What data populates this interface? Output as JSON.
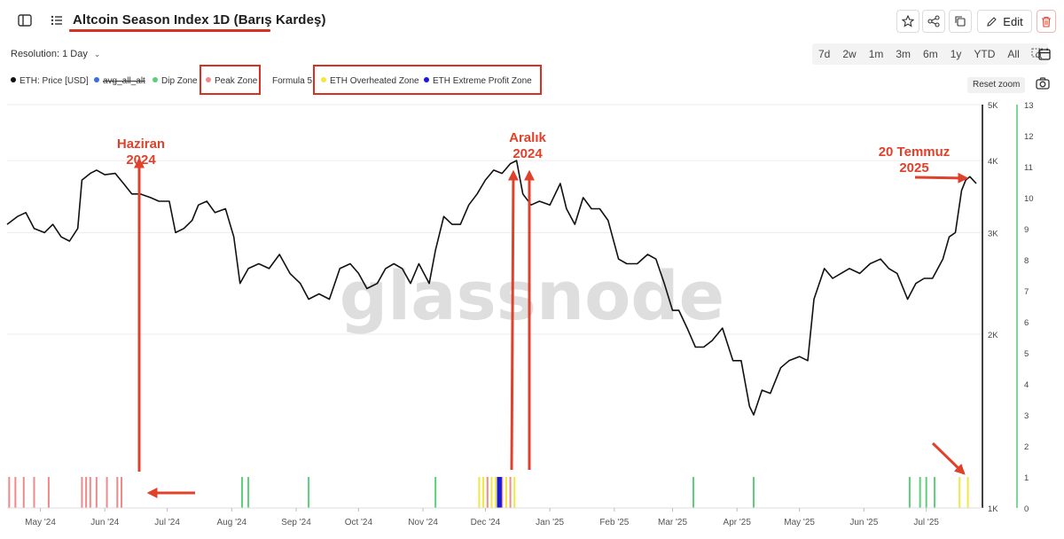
{
  "toolbar": {
    "title": "Altcoin Season Index 1D (Barış Kardeş)",
    "edit_label": "Edit",
    "resolution_label": "Resolution: 1 Day",
    "ranges": [
      "7d",
      "2w",
      "1m",
      "3m",
      "6m",
      "1y",
      "YTD",
      "All"
    ],
    "reset_zoom_label": "Reset zoom"
  },
  "legend": {
    "eth_price": "ETH: Price [USD]",
    "avg_all_alt": "avg_all_alt",
    "dip_zone": "Dip Zone",
    "peak_zone": "Peak Zone",
    "formula": "Formula 5",
    "overheated": "ETH Overheated Zone",
    "extreme_profit": "ETH Extreme Profit Zone"
  },
  "colors": {
    "price_line": "#111111",
    "avg_all_alt": "#3d6be0",
    "dip_zone": "#5ccf7a",
    "peak_zone": "#f08a8a",
    "overheated": "#f2e640",
    "extreme_profit": "#1a1adb",
    "annotation": "#e0412b",
    "watermark": "#d9d9d9"
  },
  "watermark": "glassnode",
  "annotations": [
    {
      "name": "haziran",
      "lines": [
        "Haziran",
        "2024"
      ]
    },
    {
      "name": "aralik",
      "lines": [
        "Aralık",
        "2024"
      ]
    },
    {
      "name": "temmuz",
      "lines": [
        "20 Temmuz",
        "2025"
      ]
    }
  ],
  "chart_data": {
    "type": "line",
    "title": "Altcoin Season Index 1D (Barış Kardeş)",
    "x_start": "2024-04-15",
    "x_end": "2025-07-28",
    "x_ticks": [
      "May '24",
      "Jun '24",
      "Jul '24",
      "Aug '24",
      "Sep '24",
      "Oct '24",
      "Nov '24",
      "Dec '24",
      "Jan '25",
      "Feb '25",
      "Mar '25",
      "Apr '25",
      "May '25",
      "Jun '25",
      "Jul '25"
    ],
    "x_tick_dates": [
      "2024-05-01",
      "2024-06-01",
      "2024-07-01",
      "2024-08-01",
      "2024-09-01",
      "2024-10-01",
      "2024-11-01",
      "2024-12-01",
      "2025-01-01",
      "2025-02-01",
      "2025-03-01",
      "2025-04-01",
      "2025-05-01",
      "2025-06-01",
      "2025-07-01"
    ],
    "y_left_ticks": [
      "1K",
      "2K",
      "3K",
      "4K",
      "5K"
    ],
    "y_left_values": [
      1000,
      2000,
      3000,
      4000,
      5000
    ],
    "y_left_scale": "log",
    "y_right_ticks": [
      "0",
      "1",
      "2",
      "3",
      "4",
      "5",
      "6",
      "7",
      "8",
      "9",
      "10",
      "11",
      "12",
      "13"
    ],
    "y_right_range": [
      0,
      13
    ],
    "grid": true,
    "legend_position": "top-left",
    "series": [
      {
        "name": "ETH: Price [USD]",
        "points": [
          [
            "2024-04-15",
            3100
          ],
          [
            "2024-04-20",
            3200
          ],
          [
            "2024-04-24",
            3250
          ],
          [
            "2024-04-28",
            3050
          ],
          [
            "2024-05-03",
            3000
          ],
          [
            "2024-05-07",
            3100
          ],
          [
            "2024-05-11",
            2950
          ],
          [
            "2024-05-15",
            2900
          ],
          [
            "2024-05-19",
            3050
          ],
          [
            "2024-05-21",
            3700
          ],
          [
            "2024-05-25",
            3800
          ],
          [
            "2024-05-28",
            3850
          ],
          [
            "2024-06-01",
            3780
          ],
          [
            "2024-06-06",
            3800
          ],
          [
            "2024-06-10",
            3650
          ],
          [
            "2024-06-14",
            3500
          ],
          [
            "2024-06-18",
            3500
          ],
          [
            "2024-06-23",
            3450
          ],
          [
            "2024-06-27",
            3400
          ],
          [
            "2024-07-02",
            3400
          ],
          [
            "2024-07-05",
            3000
          ],
          [
            "2024-07-09",
            3050
          ],
          [
            "2024-07-13",
            3150
          ],
          [
            "2024-07-16",
            3350
          ],
          [
            "2024-07-20",
            3400
          ],
          [
            "2024-07-24",
            3250
          ],
          [
            "2024-07-29",
            3300
          ],
          [
            "2024-08-02",
            2950
          ],
          [
            "2024-08-05",
            2450
          ],
          [
            "2024-08-09",
            2600
          ],
          [
            "2024-08-14",
            2650
          ],
          [
            "2024-08-19",
            2600
          ],
          [
            "2024-08-24",
            2750
          ],
          [
            "2024-08-29",
            2550
          ],
          [
            "2024-09-03",
            2450
          ],
          [
            "2024-09-07",
            2300
          ],
          [
            "2024-09-12",
            2350
          ],
          [
            "2024-09-17",
            2300
          ],
          [
            "2024-09-22",
            2600
          ],
          [
            "2024-09-27",
            2650
          ],
          [
            "2024-10-01",
            2550
          ],
          [
            "2024-10-05",
            2400
          ],
          [
            "2024-10-10",
            2450
          ],
          [
            "2024-10-14",
            2600
          ],
          [
            "2024-10-18",
            2650
          ],
          [
            "2024-10-22",
            2600
          ],
          [
            "2024-10-26",
            2450
          ],
          [
            "2024-10-30",
            2650
          ],
          [
            "2024-11-04",
            2450
          ],
          [
            "2024-11-07",
            2800
          ],
          [
            "2024-11-11",
            3200
          ],
          [
            "2024-11-15",
            3100
          ],
          [
            "2024-11-19",
            3100
          ],
          [
            "2024-11-23",
            3350
          ],
          [
            "2024-11-27",
            3500
          ],
          [
            "2024-12-01",
            3700
          ],
          [
            "2024-12-05",
            3850
          ],
          [
            "2024-12-09",
            3800
          ],
          [
            "2024-12-13",
            3950
          ],
          [
            "2024-12-16",
            4000
          ],
          [
            "2024-12-19",
            3500
          ],
          [
            "2024-12-23",
            3350
          ],
          [
            "2024-12-27",
            3400
          ],
          [
            "2025-01-01",
            3350
          ],
          [
            "2025-01-06",
            3650
          ],
          [
            "2025-01-09",
            3300
          ],
          [
            "2025-01-13",
            3100
          ],
          [
            "2025-01-17",
            3450
          ],
          [
            "2025-01-21",
            3300
          ],
          [
            "2025-01-25",
            3300
          ],
          [
            "2025-01-29",
            3150
          ],
          [
            "2025-02-03",
            2700
          ],
          [
            "2025-02-07",
            2650
          ],
          [
            "2025-02-12",
            2650
          ],
          [
            "2025-02-17",
            2750
          ],
          [
            "2025-02-21",
            2700
          ],
          [
            "2025-02-25",
            2450
          ],
          [
            "2025-03-01",
            2200
          ],
          [
            "2025-03-04",
            2200
          ],
          [
            "2025-03-08",
            2050
          ],
          [
            "2025-03-12",
            1900
          ],
          [
            "2025-03-16",
            1900
          ],
          [
            "2025-03-20",
            1950
          ],
          [
            "2025-03-25",
            2050
          ],
          [
            "2025-03-30",
            1800
          ],
          [
            "2025-04-03",
            1800
          ],
          [
            "2025-04-07",
            1500
          ],
          [
            "2025-04-09",
            1450
          ],
          [
            "2025-04-13",
            1600
          ],
          [
            "2025-04-17",
            1580
          ],
          [
            "2025-04-22",
            1750
          ],
          [
            "2025-04-26",
            1800
          ],
          [
            "2025-05-01",
            1830
          ],
          [
            "2025-05-05",
            1800
          ],
          [
            "2025-05-08",
            2300
          ],
          [
            "2025-05-13",
            2600
          ],
          [
            "2025-05-17",
            2500
          ],
          [
            "2025-05-21",
            2550
          ],
          [
            "2025-05-25",
            2600
          ],
          [
            "2025-05-30",
            2550
          ],
          [
            "2025-06-04",
            2650
          ],
          [
            "2025-06-09",
            2700
          ],
          [
            "2025-06-13",
            2600
          ],
          [
            "2025-06-17",
            2550
          ],
          [
            "2025-06-22",
            2300
          ],
          [
            "2025-06-26",
            2450
          ],
          [
            "2025-06-30",
            2500
          ],
          [
            "2025-07-04",
            2500
          ],
          [
            "2025-07-09",
            2700
          ],
          [
            "2025-07-12",
            2950
          ],
          [
            "2025-07-15",
            3000
          ],
          [
            "2025-07-18",
            3550
          ],
          [
            "2025-07-20",
            3700
          ],
          [
            "2025-07-22",
            3750
          ],
          [
            "2025-07-25",
            3650
          ]
        ]
      },
      {
        "name": "Peak Zone",
        "dates": [
          "2024-04-16",
          "2024-04-19",
          "2024-04-23",
          "2024-04-28",
          "2024-05-05",
          "2024-05-21",
          "2024-05-23",
          "2024-05-25",
          "2024-05-28",
          "2024-06-02",
          "2024-06-07",
          "2024-06-09",
          "2024-12-02",
          "2024-12-09",
          "2024-12-13"
        ]
      },
      {
        "name": "Dip Zone",
        "dates": [
          "2024-08-06",
          "2024-08-09",
          "2024-09-07",
          "2024-11-07",
          "2025-03-11",
          "2025-04-09",
          "2025-06-23",
          "2025-06-28",
          "2025-07-01",
          "2025-07-05"
        ]
      },
      {
        "name": "ETH Overheated Zone",
        "dates": [
          "2024-11-28",
          "2024-11-30",
          "2024-12-04",
          "2024-12-06",
          "2024-12-11",
          "2024-12-15",
          "2025-07-17",
          "2025-07-21"
        ]
      },
      {
        "name": "ETH Extreme Profit Zone",
        "dates": [
          "2024-12-07",
          "2024-12-08"
        ]
      }
    ]
  }
}
